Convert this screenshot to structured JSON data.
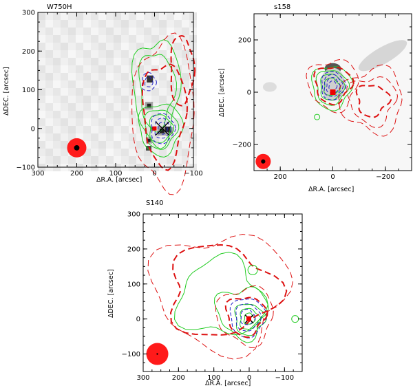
{
  "chart_data": [
    {
      "type": "contour",
      "title": "W750H",
      "xlabel": "ΔR.A. [arcsec]",
      "ylabel": "ΔDEC. [arcsec]",
      "xlim": [
        300,
        -100
      ],
      "ylim": [
        -100,
        300
      ],
      "xticks": [
        "300",
        "200",
        "100",
        "0",
        "−100"
      ],
      "yticks": [
        "−100",
        "0",
        "100",
        "200",
        "300"
      ],
      "beam": {
        "x": 200,
        "y": -50
      },
      "markers": [
        {
          "symbol": "cross",
          "x": -20,
          "y": 0
        },
        {
          "symbol": "square",
          "x": 0,
          "y": 0
        }
      ],
      "contour_colors": {
        "green": "#00cc00",
        "blue": "#0000cc",
        "red": "#dd0000"
      }
    },
    {
      "type": "contour",
      "title": "s158",
      "xlabel": "ΔR.A. [arcsec]",
      "ylabel": "ΔDEC. [arcsec]",
      "xlim": [
        300,
        -300
      ],
      "ylim": [
        -300,
        300
      ],
      "xticks": [
        "200",
        "0",
        "−200"
      ],
      "yticks": [
        "−200",
        "0",
        "200"
      ],
      "beam": {
        "x": 265,
        "y": -265
      },
      "markers": [
        {
          "symbol": "square",
          "x": 0,
          "y": 0
        }
      ],
      "contour_colors": {
        "green": "#00cc00",
        "blue": "#0000cc",
        "red": "#dd0000"
      }
    },
    {
      "type": "contour",
      "title": "S140",
      "xlabel": "ΔR.A. [arcsec]",
      "ylabel": "ΔDEC. [arcsec]",
      "xlim": [
        300,
        -150
      ],
      "ylim": [
        -150,
        300
      ],
      "xticks": [
        "300",
        "200",
        "100",
        "0",
        "−100"
      ],
      "yticks": [
        "−100",
        "0",
        "100",
        "200",
        "300"
      ],
      "beam": {
        "x": 260,
        "y": -100
      },
      "markers": [
        {
          "symbol": "cross",
          "x": 0,
          "y": 0
        },
        {
          "symbol": "square",
          "x": 0,
          "y": 0
        }
      ],
      "contour_colors": {
        "green": "#00cc00",
        "blue": "#0000cc",
        "red": "#dd0000"
      }
    }
  ]
}
